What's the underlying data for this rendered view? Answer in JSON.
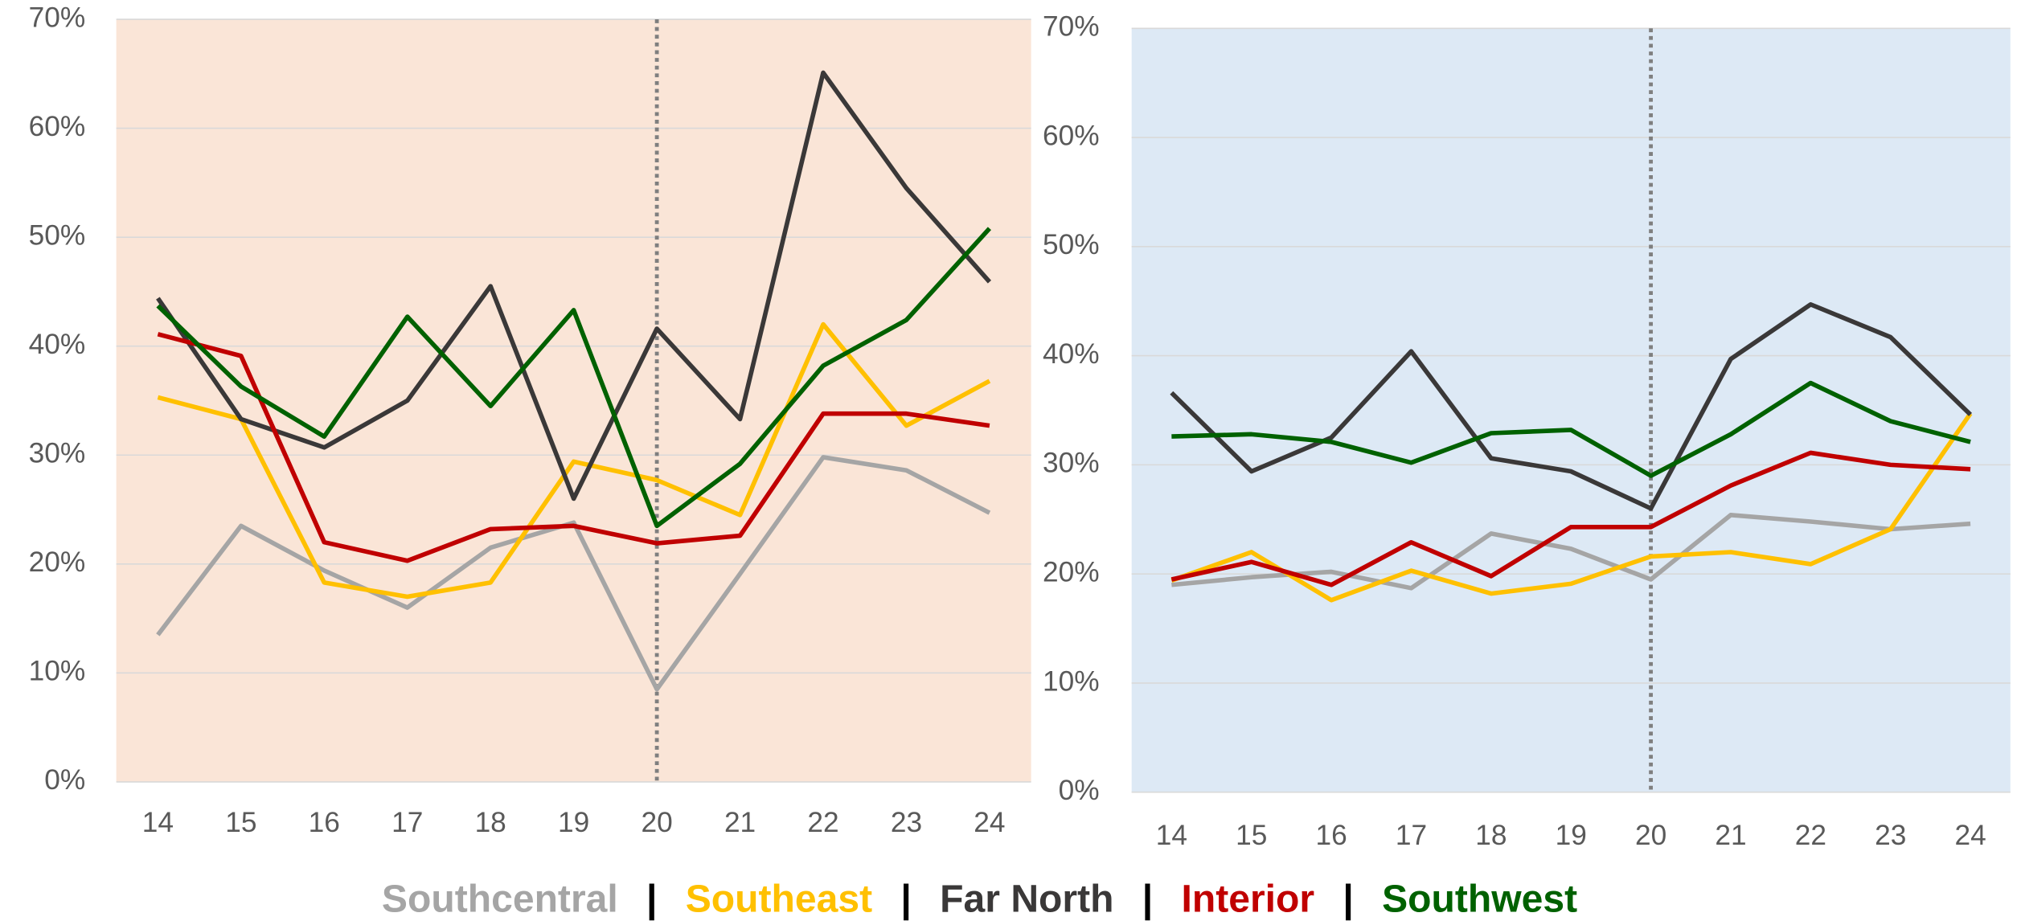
{
  "chart_data": [
    {
      "type": "line",
      "background": "#fae5d7",
      "vline_x": "20",
      "categories": [
        "14",
        "15",
        "16",
        "17",
        "18",
        "19",
        "20",
        "21",
        "22",
        "23",
        "24"
      ],
      "ylim": [
        0,
        70
      ],
      "yticks": [
        {
          "value": 0,
          "label": "0%"
        },
        {
          "value": 10,
          "label": "10%"
        },
        {
          "value": 20,
          "label": "20%"
        },
        {
          "value": 30,
          "label": "30%"
        },
        {
          "value": 40,
          "label": "40%"
        },
        {
          "value": 50,
          "label": "50%"
        },
        {
          "value": 60,
          "label": "60%"
        },
        {
          "value": 70,
          "label": "70%"
        }
      ],
      "grid": true,
      "series": [
        {
          "name": "Southcentral",
          "color": "#a5a5a5",
          "values": [
            13.5,
            23.5,
            19.4,
            16.0,
            21.5,
            23.8,
            8.5,
            19.1,
            29.8,
            28.6,
            24.7
          ]
        },
        {
          "name": "Southeast",
          "color": "#ffc000",
          "values": [
            35.3,
            33.3,
            18.3,
            17.0,
            18.3,
            29.4,
            27.7,
            24.5,
            42.0,
            32.7,
            36.8
          ]
        },
        {
          "name": "Far North",
          "color": "#3a3838",
          "values": [
            44.4,
            33.3,
            30.7,
            35.0,
            45.5,
            26.0,
            41.6,
            33.3,
            65.1,
            54.5,
            45.9
          ]
        },
        {
          "name": "Interior",
          "color": "#c00000",
          "values": [
            41.1,
            39.1,
            22.0,
            20.3,
            23.2,
            23.5,
            21.9,
            22.6,
            33.8,
            33.8,
            32.7
          ]
        },
        {
          "name": "Southwest",
          "color": "#006100",
          "values": [
            43.7,
            36.3,
            31.7,
            42.7,
            34.5,
            43.3,
            23.5,
            29.2,
            38.2,
            42.4,
            50.8
          ]
        }
      ]
    },
    {
      "type": "line",
      "background": "#dde9f5",
      "vline_x": "20",
      "categories": [
        "14",
        "15",
        "16",
        "17",
        "18",
        "19",
        "20",
        "21",
        "22",
        "23",
        "24"
      ],
      "ylim": [
        0,
        70
      ],
      "yticks": [
        {
          "value": 0,
          "label": "0%"
        },
        {
          "value": 10,
          "label": "10%"
        },
        {
          "value": 20,
          "label": "20%"
        },
        {
          "value": 30,
          "label": "30%"
        },
        {
          "value": 40,
          "label": "40%"
        },
        {
          "value": 50,
          "label": "50%"
        },
        {
          "value": 60,
          "label": "60%"
        },
        {
          "value": 70,
          "label": "70%"
        }
      ],
      "grid": true,
      "series": [
        {
          "name": "Southcentral",
          "color": "#a5a5a5",
          "values": [
            19.0,
            19.7,
            20.2,
            18.7,
            23.7,
            22.3,
            19.5,
            25.4,
            24.8,
            24.1,
            24.6
          ]
        },
        {
          "name": "Southeast",
          "color": "#ffc000",
          "values": [
            19.4,
            22.0,
            17.6,
            20.3,
            18.2,
            19.1,
            21.6,
            22.0,
            20.9,
            24.1,
            34.7
          ]
        },
        {
          "name": "Far North",
          "color": "#3a3838",
          "values": [
            36.6,
            29.4,
            32.5,
            40.4,
            30.6,
            29.4,
            26.0,
            39.7,
            44.7,
            41.7,
            34.6
          ]
        },
        {
          "name": "Interior",
          "color": "#c00000",
          "values": [
            19.5,
            21.1,
            19.0,
            22.9,
            19.8,
            24.3,
            24.3,
            28.1,
            31.1,
            30.0,
            29.6
          ]
        },
        {
          "name": "Southwest",
          "color": "#006100",
          "values": [
            32.6,
            32.8,
            32.1,
            30.2,
            32.9,
            33.2,
            29.0,
            32.8,
            37.5,
            34.0,
            32.1
          ]
        }
      ]
    }
  ],
  "legend": {
    "separator": "|"
  }
}
